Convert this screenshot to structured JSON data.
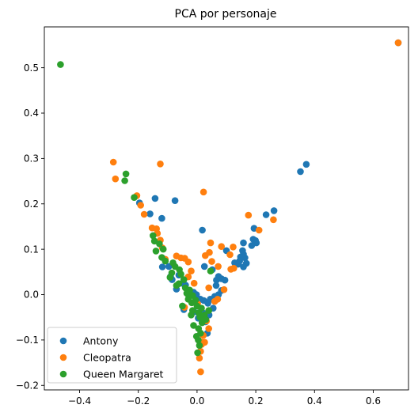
{
  "chart_data": {
    "type": "scatter",
    "title": "PCA por personaje",
    "xlabel": "",
    "ylabel": "",
    "xlim": [
      -0.52,
      0.72
    ],
    "ylim": [
      -0.21,
      0.59
    ],
    "xticks": [
      -0.4,
      -0.2,
      0.0,
      0.2,
      0.4,
      0.6
    ],
    "xtick_labels": [
      "−0.4",
      "−0.2",
      "0.0",
      "0.2",
      "0.4",
      "0.6"
    ],
    "yticks": [
      -0.2,
      -0.1,
      0.0,
      0.1,
      0.2,
      0.3,
      0.4,
      0.5
    ],
    "ytick_labels": [
      "−0.2",
      "−0.1",
      "0.0",
      "0.1",
      "0.2",
      "0.3",
      "0.4",
      "0.5"
    ],
    "grid": false,
    "legend_position": "lower-left",
    "series": [
      {
        "name": "Antony",
        "color": "#1f77b4",
        "points": [
          [
            0.685,
            0.555
          ],
          [
            0.372,
            0.287
          ],
          [
            0.352,
            0.271
          ],
          [
            0.262,
            0.185
          ],
          [
            0.235,
            0.176
          ],
          [
            0.194,
            0.146
          ],
          [
            0.199,
            0.119
          ],
          [
            0.191,
            0.122
          ],
          [
            0.202,
            0.114
          ],
          [
            0.186,
            0.108
          ],
          [
            0.158,
            0.114
          ],
          [
            0.155,
            0.097
          ],
          [
            0.158,
            0.089
          ],
          [
            0.148,
            0.083
          ],
          [
            0.163,
            0.081
          ],
          [
            0.145,
            0.074
          ],
          [
            0.168,
            0.069
          ],
          [
            0.158,
            0.061
          ],
          [
            0.14,
            0.067
          ],
          [
            0.128,
            0.07
          ],
          [
            0.1,
            0.097
          ],
          [
            0.018,
            0.142
          ],
          [
            -0.143,
            0.212
          ],
          [
            -0.075,
            0.207
          ],
          [
            -0.12,
            0.168
          ],
          [
            -0.16,
            0.178
          ],
          [
            -0.196,
            0.202
          ],
          [
            -0.096,
            0.062
          ],
          [
            -0.085,
            0.033
          ],
          [
            -0.062,
            0.043
          ],
          [
            -0.05,
            0.025
          ],
          [
            -0.07,
            0.012
          ],
          [
            -0.039,
            0.021
          ],
          [
            -0.012,
            0.005
          ],
          [
            -0.002,
            0.0
          ],
          [
            0.011,
            -0.01
          ],
          [
            0.023,
            -0.013
          ],
          [
            0.037,
            -0.019
          ],
          [
            0.045,
            -0.01
          ],
          [
            0.06,
            -0.004
          ],
          [
            0.073,
            0.0
          ],
          [
            0.083,
            0.009
          ],
          [
            0.065,
            0.02
          ],
          [
            0.066,
            0.032
          ],
          [
            0.073,
            0.04
          ],
          [
            0.083,
            0.035
          ],
          [
            0.095,
            0.032
          ],
          [
            0.055,
            -0.03
          ],
          [
            0.041,
            -0.045
          ],
          [
            0.02,
            -0.04
          ],
          [
            0.004,
            -0.052
          ],
          [
            -0.01,
            -0.038
          ],
          [
            0.029,
            -0.06
          ],
          [
            0.025,
            0.062
          ],
          [
            0.052,
            0.055
          ],
          [
            -0.118,
            0.061
          ],
          [
            -0.09,
            0.04
          ],
          [
            -0.027,
            -0.003
          ],
          [
            -0.045,
            -0.033
          ],
          [
            0.035,
            -0.085
          ]
        ]
      },
      {
        "name": "Cleopatra",
        "color": "#ff7f0e",
        "points": [
          [
            0.685,
            0.555
          ],
          [
            -0.285,
            0.292
          ],
          [
            -0.125,
            0.288
          ],
          [
            -0.278,
            0.255
          ],
          [
            -0.205,
            0.218
          ],
          [
            -0.192,
            0.197
          ],
          [
            -0.18,
            0.177
          ],
          [
            -0.153,
            0.147
          ],
          [
            -0.138,
            0.145
          ],
          [
            -0.135,
            0.135
          ],
          [
            -0.125,
            0.12
          ],
          [
            -0.118,
            0.103
          ],
          [
            -0.108,
            0.078
          ],
          [
            -0.07,
            0.085
          ],
          [
            -0.055,
            0.081
          ],
          [
            -0.042,
            0.08
          ],
          [
            -0.03,
            0.072
          ],
          [
            -0.02,
            0.052
          ],
          [
            -0.03,
            0.039
          ],
          [
            0.022,
            0.226
          ],
          [
            0.028,
            0.086
          ],
          [
            0.046,
            0.114
          ],
          [
            0.042,
            0.093
          ],
          [
            0.05,
            0.073
          ],
          [
            0.072,
            0.062
          ],
          [
            0.083,
            0.106
          ],
          [
            0.123,
            0.105
          ],
          [
            0.112,
            0.088
          ],
          [
            0.115,
            0.056
          ],
          [
            0.125,
            0.058
          ],
          [
            0.175,
            0.175
          ],
          [
            0.211,
            0.142
          ],
          [
            0.26,
            0.165
          ],
          [
            0.092,
            0.011
          ],
          [
            0.07,
            -0.01
          ],
          [
            0.032,
            -0.058
          ],
          [
            0.04,
            -0.075
          ],
          [
            0.021,
            -0.09
          ],
          [
            0.015,
            -0.11
          ],
          [
            0.012,
            -0.125
          ],
          [
            0.018,
            -0.105
          ],
          [
            0.008,
            -0.14
          ],
          [
            0.012,
            -0.17
          ],
          [
            0.026,
            -0.105
          ],
          [
            -0.043,
            -0.028
          ],
          [
            0.002,
            -0.02
          ],
          [
            0.06,
            -0.015
          ],
          [
            0.04,
            0.015
          ],
          [
            -0.01,
            0.025
          ]
        ]
      },
      {
        "name": "Queen Margaret",
        "color": "#2ca02c",
        "points": [
          [
            -0.465,
            0.507
          ],
          [
            -0.242,
            0.266
          ],
          [
            -0.246,
            0.251
          ],
          [
            -0.214,
            0.214
          ],
          [
            -0.15,
            0.13
          ],
          [
            -0.145,
            0.118
          ],
          [
            -0.128,
            0.112
          ],
          [
            -0.14,
            0.096
          ],
          [
            -0.115,
            0.1
          ],
          [
            -0.12,
            0.082
          ],
          [
            -0.108,
            0.074
          ],
          [
            -0.082,
            0.07
          ],
          [
            -0.075,
            0.062
          ],
          [
            -0.086,
            0.048
          ],
          [
            -0.06,
            0.055
          ],
          [
            -0.055,
            0.045
          ],
          [
            -0.045,
            0.033
          ],
          [
            -0.07,
            0.02
          ],
          [
            -0.04,
            0.015
          ],
          [
            -0.025,
            0.01
          ],
          [
            -0.035,
            0.003
          ],
          [
            -0.015,
            -0.002
          ],
          [
            -0.03,
            -0.01
          ],
          [
            -0.018,
            -0.018
          ],
          [
            -0.005,
            -0.012
          ],
          [
            0.0,
            -0.025
          ],
          [
            -0.015,
            -0.035
          ],
          [
            0.005,
            -0.04
          ],
          [
            0.015,
            -0.03
          ],
          [
            -0.02,
            -0.045
          ],
          [
            0.01,
            -0.05
          ],
          [
            0.025,
            -0.045
          ],
          [
            0.03,
            -0.055
          ],
          [
            -0.012,
            -0.068
          ],
          [
            0.005,
            -0.075
          ],
          [
            -0.002,
            -0.092
          ],
          [
            0.004,
            -0.1
          ],
          [
            0.008,
            -0.112
          ],
          [
            0.002,
            -0.128
          ],
          [
            0.046,
            0.052
          ],
          [
            -0.05,
            -0.025
          ],
          [
            -0.03,
            0.0
          ],
          [
            0.017,
            -0.062
          ],
          [
            0.04,
            -0.035
          ],
          [
            -0.092,
            0.038
          ],
          [
            -0.062,
            0.024
          ],
          [
            0.012,
            -0.085
          ]
        ]
      }
    ]
  }
}
